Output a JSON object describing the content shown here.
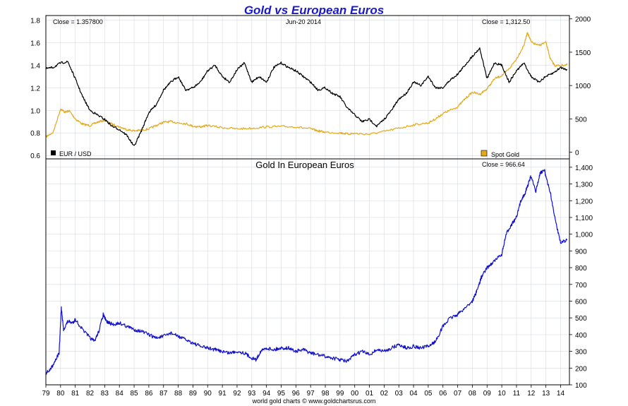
{
  "title": "Gold vs European Euros",
  "footer": "world gold charts © www.goldchartsrus.com",
  "colors": {
    "eur_usd": "#000000",
    "spot_gold": "#e6a817",
    "gold_eur": "#1010cc",
    "title": "#1a1acc",
    "grid": "#d6dbe0"
  },
  "top_panel": {
    "left_readout": "Close = 1.357800",
    "date_readout": "Jun-20 2014",
    "right_readout": "Close = 1,312.50",
    "legend_left": "EUR / USD",
    "legend_right": "Spot Gold"
  },
  "bottom_panel": {
    "title": "Gold In European Euros",
    "readout": "Close = 966.64"
  },
  "chart_data": [
    {
      "type": "line",
      "x_ticks": [
        "79",
        "80",
        "81",
        "82",
        "83",
        "84",
        "85",
        "86",
        "87",
        "88",
        "89",
        "90",
        "91",
        "92",
        "93",
        "94",
        "95",
        "96",
        "97",
        "98",
        "99",
        "00",
        "01",
        "02",
        "03",
        "04",
        "05",
        "06",
        "07",
        "08",
        "09",
        "10",
        "11",
        "12",
        "13",
        "14"
      ],
      "y_left_ticks": [
        "0.6",
        "0.8",
        "1.0",
        "1.2",
        "1.4",
        "1.6",
        "1.8"
      ],
      "y_right_ticks": [
        "0",
        "500",
        "1000",
        "1500",
        "2000"
      ],
      "ylim_left": [
        0.57,
        1.84
      ],
      "ylim_right": [
        -100,
        2050
      ],
      "series": [
        {
          "name": "EUR / USD",
          "axis": "left",
          "x": [
            1979.0,
            1979.5,
            1980.0,
            1980.5,
            1981.0,
            1981.5,
            1982.0,
            1982.5,
            1983.0,
            1983.5,
            1984.0,
            1984.5,
            1985.0,
            1985.5,
            1986.0,
            1986.5,
            1987.0,
            1987.5,
            1988.0,
            1988.5,
            1989.0,
            1989.5,
            1990.0,
            1990.5,
            1991.0,
            1991.5,
            1992.0,
            1992.5,
            1993.0,
            1993.5,
            1994.0,
            1994.5,
            1995.0,
            1995.5,
            1996.0,
            1996.5,
            1997.0,
            1997.5,
            1998.0,
            1998.5,
            1999.0,
            1999.5,
            2000.0,
            2000.5,
            2001.0,
            2001.5,
            2002.0,
            2002.5,
            2003.0,
            2003.5,
            2004.0,
            2004.5,
            2005.0,
            2005.5,
            2006.0,
            2006.5,
            2007.0,
            2007.5,
            2008.0,
            2008.5,
            2009.0,
            2009.5,
            2010.0,
            2010.5,
            2011.0,
            2011.5,
            2012.0,
            2012.5,
            2013.0,
            2013.5,
            2014.0,
            2014.45
          ],
          "values": [
            1.37,
            1.38,
            1.42,
            1.43,
            1.28,
            1.12,
            1.0,
            0.96,
            0.92,
            0.86,
            0.83,
            0.78,
            0.68,
            0.82,
            0.98,
            1.05,
            1.18,
            1.25,
            1.3,
            1.18,
            1.2,
            1.25,
            1.35,
            1.4,
            1.3,
            1.25,
            1.36,
            1.42,
            1.25,
            1.3,
            1.25,
            1.38,
            1.42,
            1.38,
            1.35,
            1.3,
            1.25,
            1.18,
            1.2,
            1.15,
            1.12,
            1.02,
            0.96,
            0.9,
            0.92,
            0.86,
            0.92,
            1.0,
            1.1,
            1.15,
            1.25,
            1.22,
            1.3,
            1.2,
            1.2,
            1.27,
            1.32,
            1.4,
            1.48,
            1.55,
            1.28,
            1.42,
            1.4,
            1.25,
            1.35,
            1.42,
            1.3,
            1.25,
            1.3,
            1.33,
            1.38,
            1.36
          ]
        },
        {
          "name": "Spot Gold",
          "axis": "right",
          "x": [
            1979.0,
            1979.5,
            1980.0,
            1980.3,
            1980.6,
            1981.0,
            1981.5,
            1982.0,
            1982.5,
            1983.0,
            1983.5,
            1984.0,
            1984.5,
            1985.0,
            1985.5,
            1986.0,
            1986.5,
            1987.0,
            1987.5,
            1988.0,
            1988.5,
            1989.0,
            1989.5,
            1990.0,
            1991.0,
            1992.0,
            1993.0,
            1994.0,
            1995.0,
            1996.0,
            1997.0,
            1997.5,
            1998.0,
            1999.0,
            1999.5,
            2000.0,
            2001.0,
            2002.0,
            2003.0,
            2004.0,
            2005.0,
            2005.5,
            2006.0,
            2006.5,
            2007.0,
            2007.5,
            2008.0,
            2008.5,
            2009.0,
            2009.5,
            2010.0,
            2010.5,
            2011.0,
            2011.5,
            2011.75,
            2012.0,
            2012.5,
            2013.0,
            2013.3,
            2013.6,
            2014.0,
            2014.45
          ],
          "values": [
            230,
            300,
            650,
            600,
            620,
            500,
            420,
            400,
            450,
            480,
            420,
            380,
            340,
            320,
            330,
            350,
            400,
            450,
            460,
            440,
            430,
            390,
            380,
            400,
            370,
            350,
            360,
            380,
            385,
            380,
            350,
            320,
            300,
            290,
            275,
            280,
            270,
            310,
            360,
            410,
            440,
            500,
            580,
            630,
            680,
            800,
            900,
            870,
            950,
            1100,
            1150,
            1250,
            1400,
            1600,
            1800,
            1650,
            1600,
            1650,
            1400,
            1300,
            1300,
            1312
          ]
        }
      ]
    },
    {
      "type": "line",
      "title": "Gold In European Euros",
      "x_ticks": [
        "79",
        "80",
        "81",
        "82",
        "83",
        "84",
        "85",
        "86",
        "87",
        "88",
        "89",
        "90",
        "91",
        "92",
        "93",
        "94",
        "95",
        "96",
        "97",
        "98",
        "99",
        "00",
        "01",
        "02",
        "03",
        "04",
        "05",
        "06",
        "07",
        "08",
        "09",
        "10",
        "11",
        "12",
        "13",
        "14"
      ],
      "y_ticks": [
        "100",
        "200",
        "300",
        "400",
        "500",
        "600",
        "700",
        "800",
        "900",
        "1,000",
        "1,100",
        "1,200",
        "1,300",
        "1,400"
      ],
      "ylim": [
        100,
        1450
      ],
      "series": [
        {
          "name": "Gold In European Euros",
          "x": [
            1979.0,
            1979.3,
            1979.6,
            1979.9,
            1980.05,
            1980.2,
            1980.5,
            1980.8,
            1981.0,
            1981.5,
            1982.0,
            1982.3,
            1982.6,
            1982.9,
            1983.1,
            1983.3,
            1983.6,
            1984.0,
            1984.5,
            1985.0,
            1985.5,
            1986.0,
            1986.5,
            1987.0,
            1987.5,
            1988.0,
            1988.5,
            1989.0,
            1989.5,
            1990.0,
            1990.5,
            1991.0,
            1991.5,
            1992.0,
            1992.5,
            1993.0,
            1993.3,
            1993.6,
            1994.0,
            1994.5,
            1995.0,
            1995.5,
            1996.0,
            1996.5,
            1997.0,
            1997.5,
            1998.0,
            1998.5,
            1999.0,
            1999.5,
            2000.0,
            2000.5,
            2001.0,
            2001.5,
            2002.0,
            2002.5,
            2003.0,
            2003.5,
            2004.0,
            2004.5,
            2005.0,
            2005.5,
            2006.0,
            2006.5,
            2007.0,
            2007.5,
            2008.0,
            2008.3,
            2008.6,
            2009.0,
            2009.5,
            2010.0,
            2010.3,
            2010.6,
            2011.0,
            2011.3,
            2011.6,
            2011.8,
            2012.0,
            2012.3,
            2012.6,
            2012.9,
            2013.0,
            2013.3,
            2013.6,
            2014.0,
            2014.45
          ],
          "values": [
            170,
            190,
            240,
            290,
            560,
            430,
            480,
            470,
            490,
            430,
            380,
            360,
            420,
            520,
            480,
            470,
            460,
            470,
            450,
            430,
            420,
            400,
            380,
            390,
            410,
            390,
            370,
            350,
            330,
            320,
            310,
            300,
            290,
            300,
            290,
            260,
            250,
            300,
            320,
            310,
            320,
            320,
            300,
            310,
            290,
            280,
            270,
            260,
            250,
            240,
            280,
            300,
            280,
            310,
            300,
            320,
            340,
            320,
            330,
            320,
            330,
            360,
            450,
            500,
            520,
            560,
            600,
            660,
            740,
            800,
            840,
            880,
            1000,
            1050,
            1100,
            1200,
            1250,
            1300,
            1350,
            1250,
            1360,
            1390,
            1340,
            1250,
            1100,
            950,
            967
          ]
        }
      ]
    }
  ]
}
